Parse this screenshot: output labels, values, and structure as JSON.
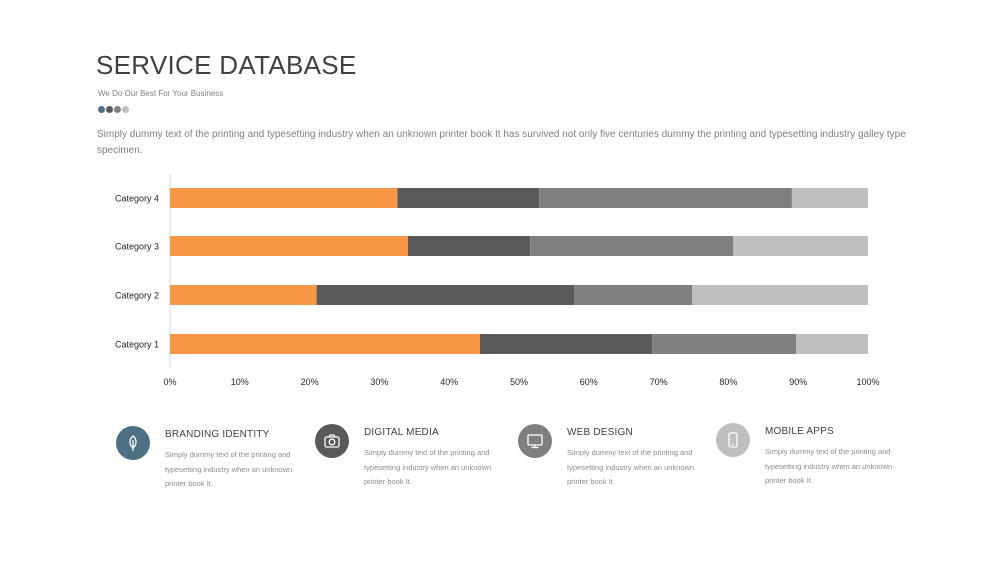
{
  "header": {
    "title": "SERVICE DATABASE",
    "subtitle": "We Do Our Best For Your Business",
    "dot_colors": [
      "#4e7084",
      "#595959",
      "#7f7f7f",
      "#bfbfbf"
    ],
    "description": "Simply dummy text of the printing and typesetting industry when an unknown printer book It has survived not only five centuries dummy  the printing and typesetting industry galley type specimen."
  },
  "chart_data": {
    "type": "bar",
    "orientation": "horizontal",
    "stacked": "percent",
    "categories": [
      "Category 1",
      "Category 2",
      "Category 3",
      "Category 4"
    ],
    "series": [
      {
        "values": [
          44.4,
          21.0,
          34.1,
          32.6
        ],
        "color": "#f79646"
      },
      {
        "values": [
          24.7,
          36.9,
          17.5,
          20.3
        ],
        "color": "#595959"
      },
      {
        "values": [
          20.6,
          16.9,
          29.1,
          36.2
        ],
        "color": "#7f7f7f"
      },
      {
        "values": [
          10.3,
          25.2,
          19.3,
          10.9
        ],
        "color": "#bfbfbf"
      }
    ],
    "xlim": [
      0,
      100
    ],
    "x_ticks": [
      "0%",
      "10%",
      "20%",
      "30%",
      "40%",
      "50%",
      "60%",
      "70%",
      "80%",
      "90%",
      "100%"
    ],
    "grid": false,
    "legend": "none"
  },
  "features": [
    {
      "title": "BRANDING IDENTITY",
      "text": "Simply dummy text of the printing and typesetting  industry when an unknown printer book It.",
      "icon": "leaf-icon",
      "color": "#4e7084"
    },
    {
      "title": "DIGITAL MEDIA",
      "text": "Simply dummy text of the printing and typesetting  industry when an unknown printer book It.",
      "icon": "camera-icon",
      "color": "#595959"
    },
    {
      "title": "WEB DESIGN",
      "text": "Simply dummy text of the printing and typesetting  industry when an unknown printer book It.",
      "icon": "monitor-icon",
      "color": "#7f7f7f"
    },
    {
      "title": "MOBILE APPS",
      "text": "Simply dummy text of the printing and typesetting  industry when an unknown printer book It.",
      "icon": "mobile-icon",
      "color": "#bfbfbf"
    }
  ]
}
